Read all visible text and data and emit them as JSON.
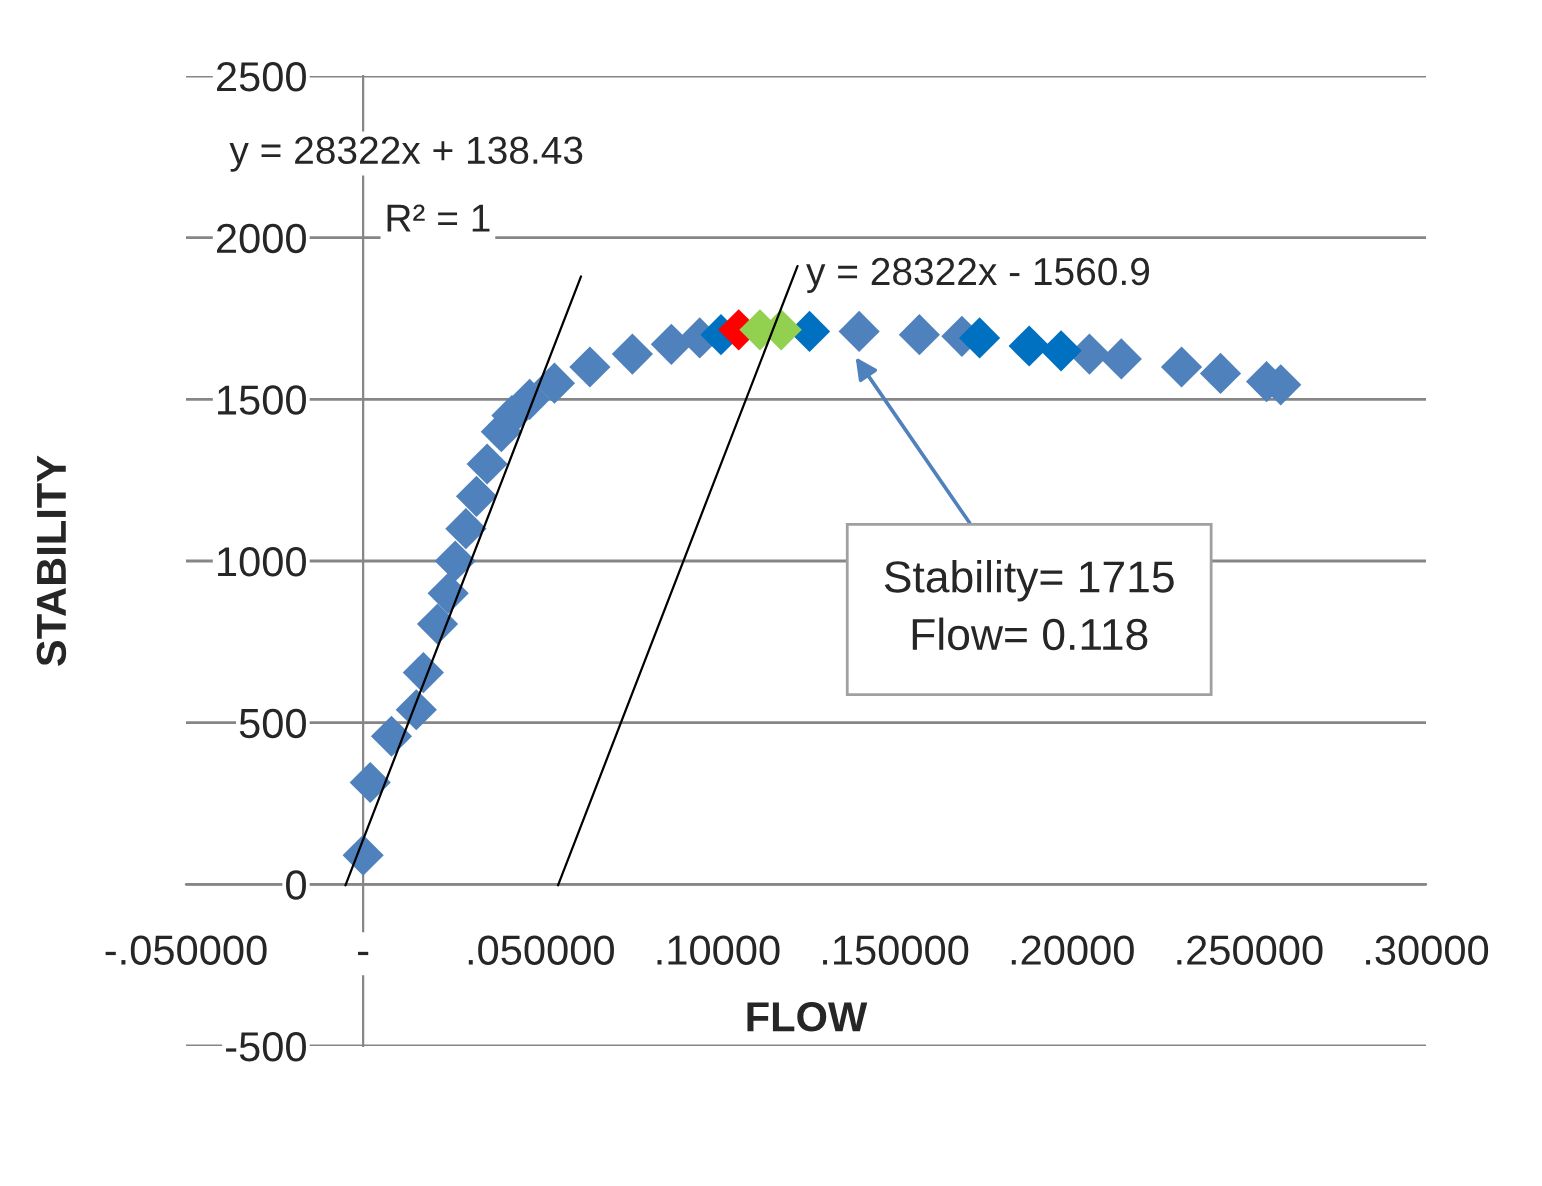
{
  "chart_data": {
    "type": "scatter",
    "xlabel": "FLOW",
    "ylabel": "STABILITY",
    "xlim": [
      -0.05,
      0.3
    ],
    "ylim": [
      -500,
      2500
    ],
    "xticks": [
      {
        "value": -0.05,
        "label": "-.050000"
      },
      {
        "value": 0,
        "label": "-"
      },
      {
        "value": 0.05,
        "label": ".050000"
      },
      {
        "value": 0.1,
        "label": ".10000"
      },
      {
        "value": 0.15,
        "label": ".150000"
      },
      {
        "value": 0.2,
        "label": ".20000"
      },
      {
        "value": 0.25,
        "label": ".250000"
      },
      {
        "value": 0.3,
        "label": ".30000"
      }
    ],
    "yticks": [
      -500,
      0,
      500,
      1000,
      1500,
      2000,
      2500
    ],
    "grid": "y",
    "marker": "diamond",
    "legend": false,
    "series": [
      {
        "color": "#4f81bd",
        "x": [
          0.0,
          0.002,
          0.008,
          0.015,
          0.017,
          0.021,
          0.024,
          0.026,
          0.029,
          0.032,
          0.035,
          0.039,
          0.042,
          0.047,
          0.054,
          0.064,
          0.076,
          0.087,
          0.095,
          0.14,
          0.157,
          0.169,
          0.205,
          0.214,
          0.231,
          0.242,
          0.255,
          0.259
        ],
        "values": [
          90,
          315,
          458,
          540,
          655,
          805,
          900,
          1000,
          1100,
          1200,
          1300,
          1400,
          1450,
          1500,
          1550,
          1600,
          1640,
          1670,
          1690,
          1710,
          1700,
          1695,
          1640,
          1625,
          1600,
          1580,
          1555,
          1545
        ]
      },
      {
        "color": "#0070c0",
        "x": [
          0.101,
          0.126,
          0.174,
          0.188,
          0.197
        ],
        "values": [
          1700,
          1710,
          1690,
          1665,
          1650
        ]
      },
      {
        "color": "#ff0000",
        "x": [
          0.106
        ],
        "values": [
          1715
        ]
      },
      {
        "color": "#92d050",
        "x": [
          0.112,
          0.118
        ],
        "values": [
          1715,
          1715
        ]
      },
      {
        "type": "line",
        "color": "#000000",
        "marker": "none",
        "x": [
          -0.005,
          0.0615
        ],
        "values": [
          -3,
          1880
        ]
      },
      {
        "type": "line",
        "color": "#000000",
        "marker": "none",
        "x": [
          0.055,
          0.1226
        ],
        "values": [
          -3,
          1912
        ]
      }
    ],
    "annotations": [
      "y = 28322x + 138.43",
      "R² = 1",
      "y = 28322x - 1560.9",
      "Stability= 1715\nFlow= 0.118"
    ]
  }
}
